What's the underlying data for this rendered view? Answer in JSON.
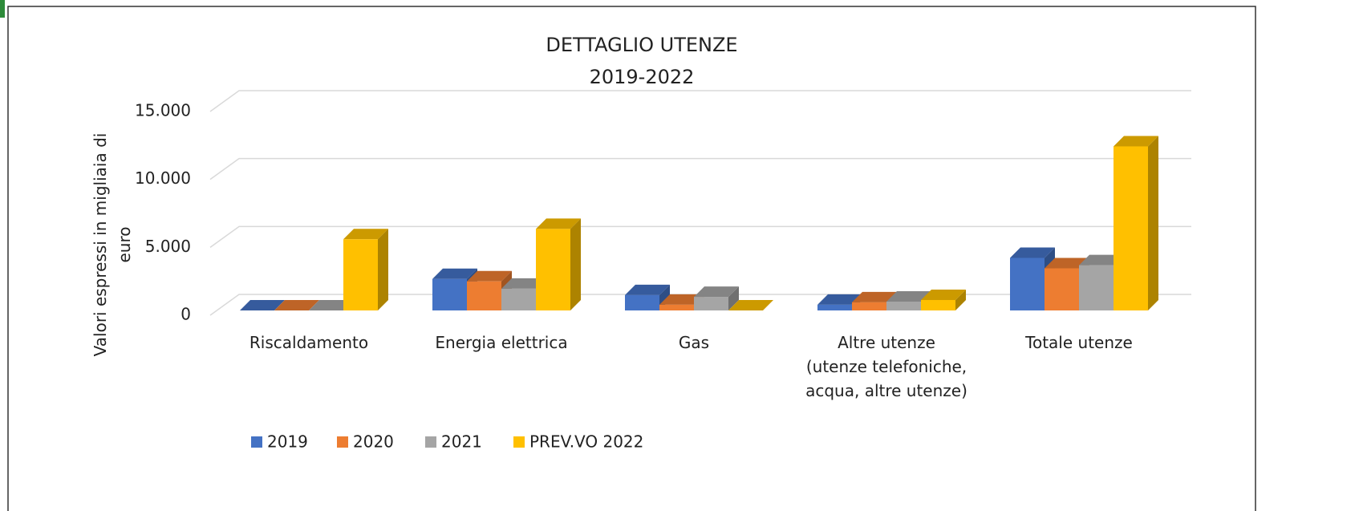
{
  "chart_data": {
    "type": "bar3d",
    "title": "DETTAGLIO UTENZE\n2019-2022",
    "y_label": "Valori espressi in migliaia di euro",
    "categories": [
      "Riscaldamento",
      "Energia elettrica",
      "Gas",
      "Altre utenze\n(utenze telefoniche,\nacqua, altre utenze)",
      "Totale utenze"
    ],
    "series": [
      {
        "name": "2019",
        "color": "#4472c4",
        "values": [
          0,
          2320,
          1130,
          420,
          3870
        ]
      },
      {
        "name": "2020",
        "color": "#ed7d31",
        "values": [
          0,
          2140,
          420,
          600,
          3100
        ]
      },
      {
        "name": "2021",
        "color": "#a5a5a5",
        "values": [
          0,
          1600,
          1000,
          650,
          3330
        ]
      },
      {
        "name": "PREV.VO 2022",
        "color": "#ffc000",
        "values": [
          5240,
          6000,
          0,
          770,
          12080
        ]
      }
    ],
    "ylim": [
      0,
      15000
    ],
    "yticks": [
      0,
      {
        "value": 5000,
        "label": "5.000"
      },
      {
        "value": 10000,
        "label": "10.000"
      },
      {
        "value": 15000,
        "label": "15.000"
      }
    ],
    "grid": true,
    "legend": "bottom"
  }
}
